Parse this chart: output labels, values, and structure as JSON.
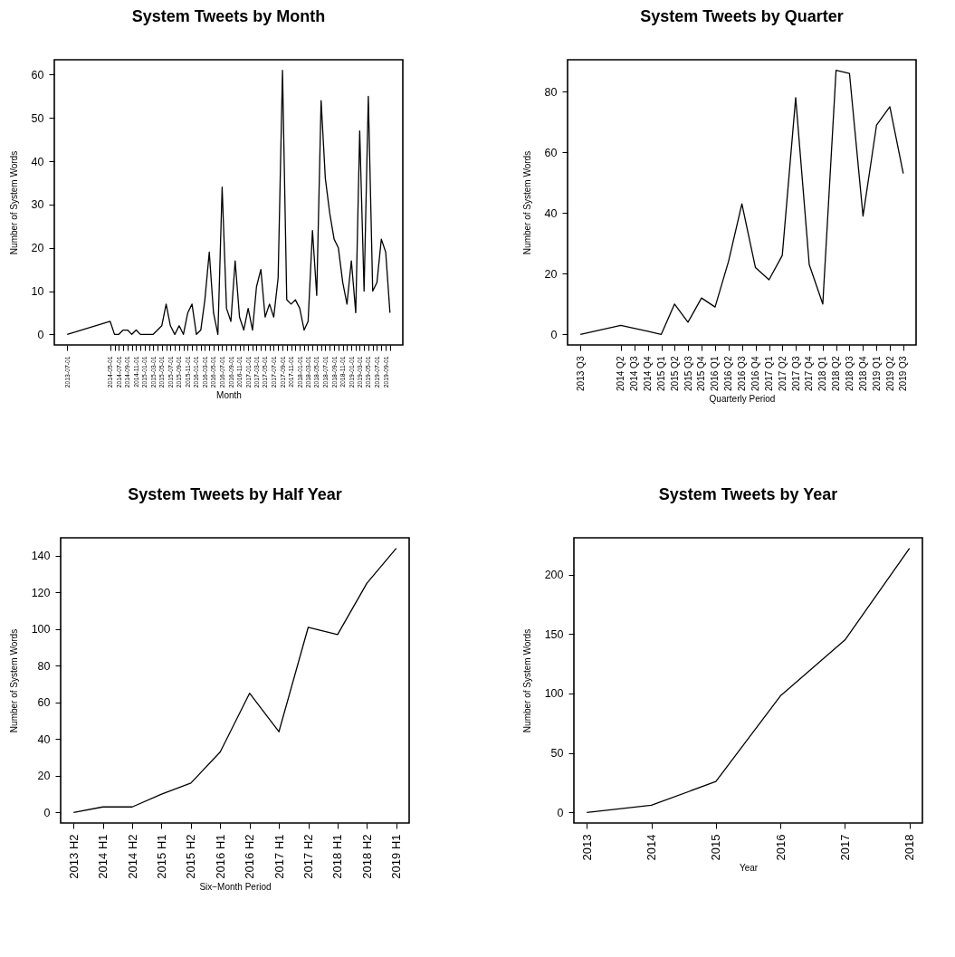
{
  "chart_data": [
    {
      "type": "line",
      "title": "System Tweets by Month",
      "xlabel": "Month",
      "ylabel": "Number of System Words",
      "color": "#000000",
      "x": [
        "2013-07",
        "2014-05",
        "2014-06",
        "2014-07",
        "2014-08",
        "2014-09",
        "2014-10",
        "2014-11",
        "2014-12",
        "2015-01",
        "2015-02",
        "2015-03",
        "2015-04",
        "2015-05",
        "2015-06",
        "2015-07",
        "2015-08",
        "2015-09",
        "2015-10",
        "2015-11",
        "2015-12",
        "2016-01",
        "2016-02",
        "2016-03",
        "2016-04",
        "2016-05",
        "2016-06",
        "2016-07",
        "2016-08",
        "2016-09",
        "2016-10",
        "2016-11",
        "2016-12",
        "2017-01",
        "2017-02",
        "2017-03",
        "2017-04",
        "2017-05",
        "2017-06",
        "2017-07",
        "2017-08",
        "2017-09",
        "2017-10",
        "2017-11",
        "2017-12",
        "2018-01",
        "2018-02",
        "2018-03",
        "2018-04",
        "2018-05",
        "2018-06",
        "2018-07",
        "2018-08",
        "2018-09",
        "2018-10",
        "2018-11",
        "2018-12",
        "2019-01",
        "2019-02",
        "2019-03",
        "2019-04",
        "2019-05",
        "2019-06",
        "2019-07",
        "2019-08",
        "2019-09",
        "2019-10"
      ],
      "values": [
        0,
        3,
        0,
        0,
        1,
        1,
        0,
        1,
        0,
        0,
        0,
        0,
        1,
        2,
        7,
        2,
        0,
        2,
        0,
        5,
        7,
        0,
        1,
        8,
        19,
        5,
        0,
        34,
        6,
        3,
        17,
        4,
        1,
        6,
        1,
        11,
        15,
        4,
        7,
        4,
        13,
        61,
        8,
        7,
        8,
        6,
        1,
        3,
        24,
        9,
        54,
        36,
        28,
        22,
        20,
        12,
        7,
        17,
        5,
        47,
        10,
        55,
        10,
        12,
        22,
        19,
        5
      ],
      "xlim": [
        "2013-04-01",
        "2019-12-31"
      ],
      "ylim": [
        -2.44,
        63.44
      ],
      "yticks": [
        0,
        10,
        20,
        30,
        40,
        50,
        60
      ],
      "xticks": [
        "2013-07-01",
        "2014-05-01",
        {
          "value": "2014-06-01",
          "label": null
        },
        "2014-07-01",
        {
          "value": "2014-08-01",
          "label": null
        },
        "2014-09-01",
        {
          "value": "2014-10-01",
          "label": null
        },
        "2014-11-01",
        {
          "value": "2014-12-01",
          "label": null
        },
        "2015-01-01",
        {
          "value": "2015-02-01",
          "label": null
        },
        "2015-03-01",
        {
          "value": "2015-04-01",
          "label": null
        },
        "2015-05-01",
        {
          "value": "2015-06-01",
          "label": null
        },
        "2015-07-01",
        {
          "value": "2015-08-01",
          "label": null
        },
        "2015-09-01",
        {
          "value": "2015-10-01",
          "label": null
        },
        "2015-11-01",
        {
          "value": "2015-12-01",
          "label": null
        },
        "2016-01-01",
        {
          "value": "2016-02-01",
          "label": null
        },
        "2016-03-01",
        {
          "value": "2016-04-01",
          "label": null
        },
        "2016-05-01",
        {
          "value": "2016-06-01",
          "label": null
        },
        "2016-07-01",
        {
          "value": "2016-08-01",
          "label": null
        },
        "2016-09-01",
        {
          "value": "2016-10-01",
          "label": null
        },
        "2016-11-01",
        {
          "value": "2016-12-01",
          "label": null
        },
        "2017-01-01",
        {
          "value": "2017-02-01",
          "label": null
        },
        "2017-03-01",
        {
          "value": "2017-04-01",
          "label": null
        },
        "2017-05-01",
        {
          "value": "2017-06-01",
          "label": null
        },
        "2017-07-01",
        {
          "value": "2017-08-01",
          "label": null
        },
        "2017-09-01",
        {
          "value": "2017-10-01",
          "label": null
        },
        "2017-11-01",
        {
          "value": "2017-12-01",
          "label": null
        },
        "2018-01-01",
        {
          "value": "2018-02-01",
          "label": null
        },
        "2018-03-01",
        {
          "value": "2018-04-01",
          "label": null
        },
        "2018-05-01",
        {
          "value": "2018-06-01",
          "label": null
        },
        "2018-07-01",
        {
          "value": "2018-08-01",
          "label": null
        },
        "2018-09-01",
        {
          "value": "2018-10-01",
          "label": null
        },
        "2018-11-01",
        {
          "value": "2018-12-01",
          "label": null
        },
        "2019-01-01",
        {
          "value": "2019-02-01",
          "label": null
        },
        "2019-03-01",
        {
          "value": "2019-04-01",
          "label": null
        },
        "2019-05-01",
        {
          "value": "2019-06-01",
          "label": null
        },
        "2019-07-01",
        {
          "value": "2019-08-01",
          "label": null
        },
        "2019-09-01",
        {
          "value": "2019-10-01",
          "label": null
        }
      ]
    },
    {
      "type": "line",
      "title": "System Tweets by Quarter",
      "xlabel": "Quarterly Period",
      "ylabel": "Number of System Words",
      "color": "#000000",
      "x": [
        "2013-07",
        "2014-04",
        "2014-07",
        "2014-10",
        "2015-01",
        "2015-04",
        "2015-07",
        "2015-10",
        "2016-01",
        "2016-04",
        "2016-07",
        "2016-10",
        "2017-01",
        "2017-04",
        "2017-07",
        "2017-10",
        "2018-01",
        "2018-04",
        "2018-07",
        "2018-10",
        "2019-01",
        "2019-04",
        "2019-07"
      ],
      "values": [
        0,
        3,
        2,
        1,
        0,
        10,
        4,
        12,
        9,
        24,
        43,
        22,
        18,
        26,
        78,
        23,
        10,
        87,
        86,
        39,
        69,
        75,
        53
      ],
      "xlim": [
        "2013-04-05",
        "2019-09-26"
      ],
      "ylim": [
        -3.48,
        90.48
      ],
      "yticks": [
        0,
        20,
        40,
        60,
        80
      ],
      "xticks": [
        {
          "value": "2013-07",
          "label": "2013 Q3"
        },
        {
          "value": "2014-04",
          "label": "2014 Q2"
        },
        {
          "value": "2014-07",
          "label": "2014 Q3"
        },
        {
          "value": "2014-10",
          "label": "2014 Q4"
        },
        {
          "value": "2015-01",
          "label": "2015 Q1"
        },
        {
          "value": "2015-04",
          "label": "2015 Q2"
        },
        {
          "value": "2015-07",
          "label": "2015 Q3"
        },
        {
          "value": "2015-10",
          "label": "2015 Q4"
        },
        {
          "value": "2016-01",
          "label": "2016 Q1"
        },
        {
          "value": "2016-04",
          "label": "2016 Q2"
        },
        {
          "value": "2016-07",
          "label": "2016 Q3"
        },
        {
          "value": "2016-10",
          "label": "2016 Q4"
        },
        {
          "value": "2017-01",
          "label": "2017 Q1"
        },
        {
          "value": "2017-04",
          "label": "2017 Q2"
        },
        {
          "value": "2017-07",
          "label": "2017 Q3"
        },
        {
          "value": "2017-10",
          "label": "2017 Q4"
        },
        {
          "value": "2018-01",
          "label": "2018 Q1"
        },
        {
          "value": "2018-04",
          "label": "2018 Q2"
        },
        {
          "value": "2018-07",
          "label": "2018 Q3"
        },
        {
          "value": "2018-10",
          "label": "2018 Q4"
        },
        {
          "value": "2019-01",
          "label": "2019 Q1"
        },
        {
          "value": "2019-04",
          "label": "2019 Q2"
        },
        {
          "value": "2019-07",
          "label": "2019 Q3"
        }
      ]
    },
    {
      "type": "line",
      "title": "System Tweets by Half Year",
      "xlabel": "Six−Month Period",
      "ylabel": "Number of System Words",
      "color": "#000000",
      "categories": [
        "2013 H2",
        "2014 H1",
        "2014 H2",
        "2015 H1",
        "2015 H2",
        "2016 H1",
        "2016 H2",
        "2017 H1",
        "2017 H2",
        "2018 H1",
        "2018 H2",
        "2019 H1"
      ],
      "values": [
        0,
        3,
        3,
        10,
        16,
        33,
        65,
        44,
        101,
        97,
        125,
        144
      ],
      "ylim": [
        -5.76,
        149.76
      ],
      "yticks": [
        0,
        20,
        40,
        60,
        80,
        100,
        120,
        140
      ]
    },
    {
      "type": "line",
      "title": "System Tweets by Year",
      "xlabel": "Year",
      "ylabel": "Number of System Words",
      "color": "#000000",
      "x": [
        2013,
        2014,
        2015,
        2016,
        2017,
        2018
      ],
      "values": [
        0,
        6,
        26,
        98,
        145,
        222
      ],
      "xlim": [
        2012.8,
        2018.2
      ],
      "ylim": [
        -8.88,
        230.88
      ],
      "xticks": [
        2013,
        2014,
        2015,
        2016,
        2017,
        2018
      ],
      "yticks": [
        0,
        50,
        100,
        150,
        200
      ]
    }
  ]
}
